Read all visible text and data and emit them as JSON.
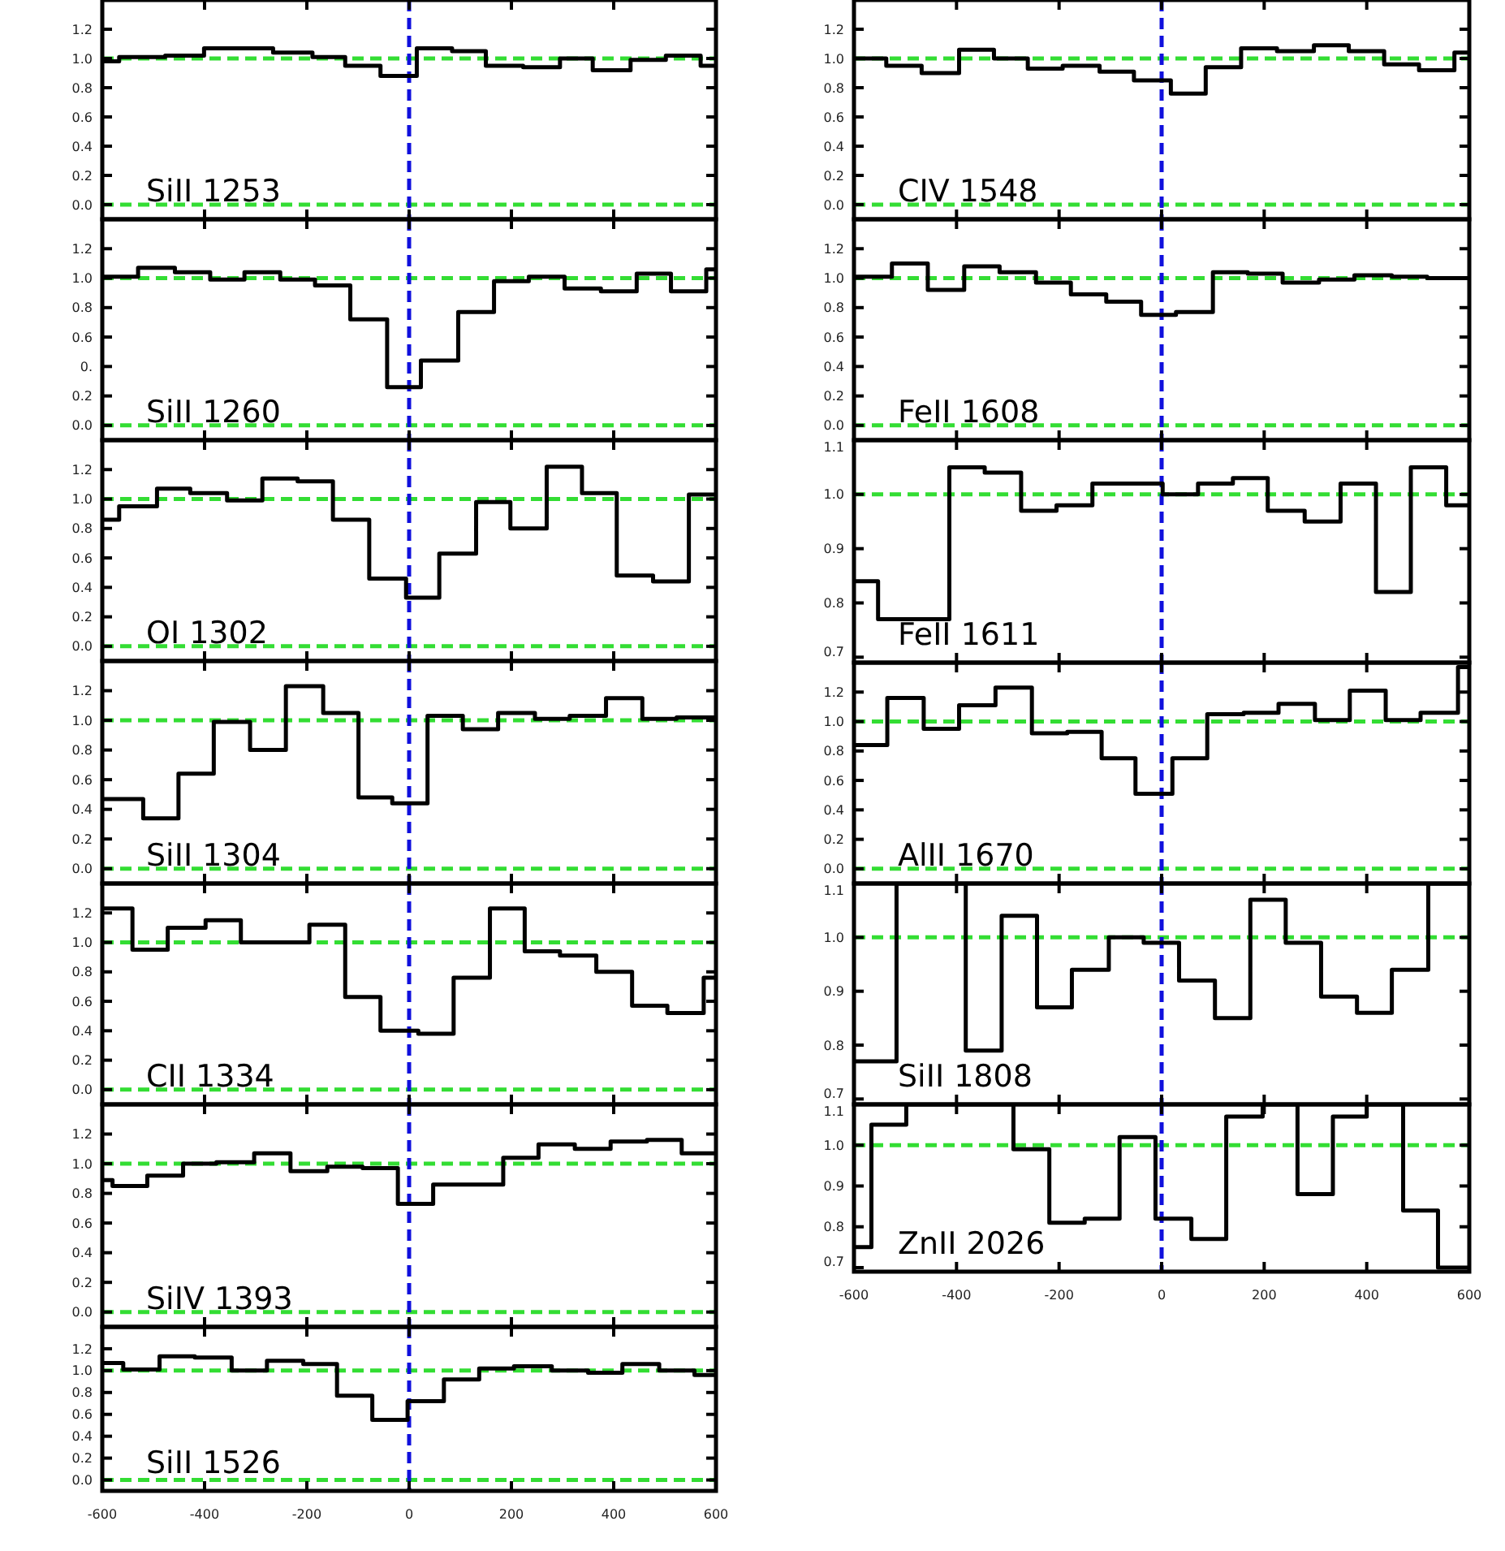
{
  "chart_data": [
    {
      "type": "step",
      "title": "SiII 1253",
      "color": "#000000",
      "x": [
        -600,
        -567,
        -477,
        -401,
        -266,
        -189,
        -125,
        -56,
        15,
        84,
        150,
        223,
        295,
        359,
        433,
        502,
        570,
        600
      ],
      "values": [
        0.98,
        1.01,
        1.02,
        1.07,
        1.04,
        1.01,
        0.95,
        0.88,
        1.07,
        1.05,
        0.95,
        0.94,
        1.0,
        0.92,
        0.99,
        1.02,
        0.95,
        0.95
      ],
      "xlim": [
        -600,
        600
      ],
      "xticks": [
        -600,
        -400,
        -200,
        0,
        200,
        400,
        600
      ],
      "ylim": [
        -0.1,
        1.4
      ],
      "yticks": [
        {
          "value": 0,
          "label": "0.0"
        },
        {
          "value": 0.2,
          "label": "0.2"
        },
        {
          "value": 0.4,
          "label": "0.4"
        },
        {
          "value": 0.6,
          "label": "0.6"
        },
        {
          "value": 0.8,
          "label": "0.8"
        },
        {
          "value": 1,
          "label": "1.0"
        },
        {
          "value": 1.2,
          "label": "1.2"
        }
      ],
      "tick_labels": "y",
      "ref_lines": [
        {
          "axis": "y",
          "value": 0,
          "color": "#33dd33",
          "line_style": "dashed"
        },
        {
          "axis": "y",
          "value": 1,
          "color": "#33dd33",
          "line_style": "dashed"
        },
        {
          "axis": "x",
          "value": 0,
          "color": "#1010dd",
          "line_style": "dashed"
        }
      ]
    },
    {
      "type": "step",
      "title": "SiII 1260",
      "color": "#000000",
      "x": [
        -600,
        -530,
        -458,
        -389,
        -322,
        -252,
        -184,
        -115,
        -43,
        23,
        96,
        166,
        234,
        304,
        375,
        445,
        512,
        581,
        600
      ],
      "values": [
        1.01,
        1.07,
        1.04,
        0.99,
        1.04,
        0.99,
        0.95,
        0.72,
        0.26,
        0.44,
        0.77,
        0.98,
        1.01,
        0.93,
        0.91,
        1.03,
        0.91,
        1.06,
        1.06
      ],
      "xlim": [
        -600,
        600
      ],
      "xticks": [
        -600,
        -400,
        -200,
        0,
        200,
        400,
        600
      ],
      "ylim": [
        -0.1,
        1.4
      ],
      "yticks": [
        {
          "value": 0,
          "label": "0.0"
        },
        {
          "value": 0.2,
          "label": "0.2"
        },
        {
          "value": 0.4,
          "label": "0."
        },
        {
          "value": 0.6,
          "label": "0.6"
        },
        {
          "value": 0.8,
          "label": "0.8"
        },
        {
          "value": 1,
          "label": "1.0"
        },
        {
          "value": 1.2,
          "label": "1.2"
        }
      ],
      "tick_labels": "y",
      "ref_lines": [
        {
          "axis": "y",
          "value": 0,
          "color": "#33dd33",
          "line_style": "dashed"
        },
        {
          "axis": "y",
          "value": 1,
          "color": "#33dd33",
          "line_style": "dashed"
        },
        {
          "axis": "x",
          "value": 0,
          "color": "#1010dd",
          "line_style": "dashed"
        }
      ]
    },
    {
      "type": "step",
      "title": "OI 1302",
      "color": "#000000",
      "x": [
        -600,
        -567,
        -493,
        -428,
        -356,
        -287,
        -218,
        -149,
        -78,
        -6,
        59,
        131,
        198,
        269,
        338,
        406,
        477,
        547,
        600
      ],
      "values": [
        0.86,
        0.95,
        1.07,
        1.04,
        0.99,
        1.14,
        1.12,
        0.86,
        0.46,
        0.33,
        0.63,
        0.98,
        0.8,
        1.22,
        1.04,
        0.48,
        0.44,
        1.03,
        1.03
      ],
      "xlim": [
        -600,
        600
      ],
      "xticks": [
        -600,
        -400,
        -200,
        0,
        200,
        400,
        600
      ],
      "ylim": [
        -0.1,
        1.4
      ],
      "yticks": [
        {
          "value": 0,
          "label": "0.0"
        },
        {
          "value": 0.2,
          "label": "0.2"
        },
        {
          "value": 0.4,
          "label": "0.4"
        },
        {
          "value": 0.6,
          "label": "0.6"
        },
        {
          "value": 0.8,
          "label": "0.8"
        },
        {
          "value": 1,
          "label": "1.0"
        },
        {
          "value": 1.2,
          "label": "1.2"
        }
      ],
      "tick_labels": "y",
      "ref_lines": [
        {
          "axis": "y",
          "value": 0,
          "color": "#33dd33",
          "line_style": "dashed"
        },
        {
          "axis": "y",
          "value": 1,
          "color": "#33dd33",
          "line_style": "dashed"
        },
        {
          "axis": "x",
          "value": 0,
          "color": "#1010dd",
          "line_style": "dashed"
        }
      ]
    },
    {
      "type": "step",
      "title": "SiII 1304",
      "color": "#000000",
      "x": [
        -600,
        -520,
        -451,
        -382,
        -311,
        -241,
        -168,
        -99,
        -33,
        36,
        105,
        174,
        246,
        314,
        385,
        456,
        523,
        600
      ],
      "values": [
        0.47,
        0.34,
        0.64,
        0.99,
        0.8,
        1.23,
        1.05,
        0.48,
        0.44,
        1.03,
        0.94,
        1.05,
        1.01,
        1.03,
        1.15,
        1.01,
        1.02,
        1.02
      ],
      "xlim": [
        -600,
        600
      ],
      "xticks": [
        -600,
        -400,
        -200,
        0,
        200,
        400,
        600
      ],
      "ylim": [
        -0.1,
        1.4
      ],
      "yticks": [
        {
          "value": 0,
          "label": "0.0"
        },
        {
          "value": 0.2,
          "label": "0.2"
        },
        {
          "value": 0.4,
          "label": "0.4"
        },
        {
          "value": 0.6,
          "label": "0.6"
        },
        {
          "value": 0.8,
          "label": "0.8"
        },
        {
          "value": 1,
          "label": "1.0"
        },
        {
          "value": 1.2,
          "label": "1.2"
        }
      ],
      "tick_labels": "y",
      "ref_lines": [
        {
          "axis": "y",
          "value": 0,
          "color": "#33dd33",
          "line_style": "dashed"
        },
        {
          "axis": "y",
          "value": 1,
          "color": "#33dd33",
          "line_style": "dashed"
        },
        {
          "axis": "x",
          "value": 0,
          "color": "#1010dd",
          "line_style": "dashed"
        }
      ]
    },
    {
      "type": "step",
      "title": "CII 1334",
      "color": "#000000",
      "x": [
        -600,
        -541,
        -472,
        -398,
        -329,
        -195,
        -125,
        -56,
        18,
        87,
        158,
        226,
        295,
        366,
        436,
        505,
        576,
        600
      ],
      "values": [
        1.23,
        0.95,
        1.1,
        1.15,
        1.0,
        1.12,
        0.63,
        0.4,
        0.38,
        0.76,
        1.23,
        0.94,
        0.91,
        0.8,
        0.57,
        0.52,
        0.76,
        0.76
      ],
      "xlim": [
        -600,
        600
      ],
      "xticks": [
        -600,
        -400,
        -200,
        0,
        200,
        400,
        600
      ],
      "ylim": [
        -0.1,
        1.4
      ],
      "yticks": [
        {
          "value": 0,
          "label": "0.0"
        },
        {
          "value": 0.2,
          "label": "0.2"
        },
        {
          "value": 0.4,
          "label": "0.4"
        },
        {
          "value": 0.6,
          "label": "0.6"
        },
        {
          "value": 0.8,
          "label": "0.8"
        },
        {
          "value": 1,
          "label": "1.0"
        },
        {
          "value": 1.2,
          "label": "1.2"
        }
      ],
      "tick_labels": "y",
      "ref_lines": [
        {
          "axis": "y",
          "value": 0,
          "color": "#33dd33",
          "line_style": "dashed"
        },
        {
          "axis": "y",
          "value": 1,
          "color": "#33dd33",
          "line_style": "dashed"
        },
        {
          "axis": "x",
          "value": 0,
          "color": "#1010dd",
          "line_style": "dashed"
        }
      ]
    },
    {
      "type": "step",
      "title": "SiIV 1393",
      "color": "#000000",
      "x": [
        -600,
        -580,
        -512,
        -442,
        -377,
        -303,
        -232,
        -160,
        -91,
        -22,
        47,
        184,
        253,
        324,
        394,
        465,
        533,
        600
      ],
      "values": [
        0.89,
        0.85,
        0.92,
        1.0,
        1.01,
        1.07,
        0.95,
        0.98,
        0.97,
        0.73,
        0.86,
        1.04,
        1.13,
        1.1,
        1.15,
        1.16,
        1.07,
        1.07
      ],
      "xlim": [
        -600,
        600
      ],
      "xticks": [
        -600,
        -400,
        -200,
        0,
        200,
        400,
        600
      ],
      "ylim": [
        -0.1,
        1.4
      ],
      "yticks": [
        {
          "value": 0,
          "label": "0.0"
        },
        {
          "value": 0.2,
          "label": "0.2"
        },
        {
          "value": 0.4,
          "label": "0.4"
        },
        {
          "value": 0.6,
          "label": "0.6"
        },
        {
          "value": 0.8,
          "label": "0.8"
        },
        {
          "value": 1,
          "label": "1.0"
        },
        {
          "value": 1.2,
          "label": "1.2"
        }
      ],
      "tick_labels": "y",
      "ref_lines": [
        {
          "axis": "y",
          "value": 0,
          "color": "#33dd33",
          "line_style": "dashed"
        },
        {
          "axis": "y",
          "value": 1,
          "color": "#33dd33",
          "line_style": "dashed"
        },
        {
          "axis": "x",
          "value": 0,
          "color": "#1010dd",
          "line_style": "dashed"
        }
      ]
    },
    {
      "type": "step",
      "title": "SiII 1526",
      "color": "#000000",
      "x": [
        -600,
        -559,
        -488,
        -419,
        -347,
        -278,
        -207,
        -141,
        -72,
        -3,
        68,
        137,
        205,
        279,
        350,
        417,
        489,
        558,
        600
      ],
      "values": [
        1.07,
        1.01,
        1.13,
        1.12,
        1.0,
        1.09,
        1.06,
        0.77,
        0.55,
        0.72,
        0.92,
        1.02,
        1.04,
        1.0,
        0.98,
        1.06,
        1.0,
        0.96,
        0.96
      ],
      "xlim": [
        -600,
        600
      ],
      "xticks": [
        -600,
        -400,
        -200,
        0,
        200,
        400,
        600
      ],
      "ylim": [
        -0.1,
        1.4
      ],
      "yticks": [
        {
          "value": 0,
          "label": "0.0"
        },
        {
          "value": 0.2,
          "label": "0.2"
        },
        {
          "value": 0.4,
          "label": "0.4"
        },
        {
          "value": 0.6,
          "label": "0.6"
        },
        {
          "value": 0.8,
          "label": "0.8"
        },
        {
          "value": 1,
          "label": "1.0"
        },
        {
          "value": 1.2,
          "label": "1.2"
        }
      ],
      "ref_lines": [
        {
          "axis": "y",
          "value": 0,
          "color": "#33dd33",
          "line_style": "dashed"
        },
        {
          "axis": "y",
          "value": 1,
          "color": "#33dd33",
          "line_style": "dashed"
        },
        {
          "axis": "x",
          "value": 0,
          "color": "#1010dd",
          "line_style": "dashed"
        }
      ]
    },
    {
      "type": "step",
      "title": "CIV 1548",
      "color": "#000000",
      "x": [
        -600,
        -537,
        -468,
        -395,
        -327,
        -261,
        -193,
        -121,
        -54,
        18,
        86,
        155,
        225,
        297,
        365,
        434,
        502,
        571,
        600
      ],
      "values": [
        1.0,
        0.95,
        0.9,
        1.06,
        1.0,
        0.93,
        0.95,
        0.91,
        0.85,
        0.76,
        0.94,
        1.07,
        1.05,
        1.09,
        1.05,
        0.96,
        0.92,
        1.04,
        1.04
      ],
      "xlim": [
        -600,
        600
      ],
      "xticks": [
        -600,
        -400,
        -200,
        0,
        200,
        400,
        600
      ],
      "ylim": [
        -0.1,
        1.4
      ],
      "yticks": [
        {
          "value": 0,
          "label": "0.0"
        },
        {
          "value": 0.2,
          "label": "0.2"
        },
        {
          "value": 0.4,
          "label": "0.4"
        },
        {
          "value": 0.6,
          "label": "0.6"
        },
        {
          "value": 0.8,
          "label": "0.8"
        },
        {
          "value": 1,
          "label": "1.0"
        },
        {
          "value": 1.2,
          "label": "1.2"
        }
      ],
      "tick_labels": "y",
      "ref_lines": [
        {
          "axis": "y",
          "value": 0,
          "color": "#33dd33",
          "line_style": "dashed"
        },
        {
          "axis": "y",
          "value": 1,
          "color": "#33dd33",
          "line_style": "dashed"
        },
        {
          "axis": "x",
          "value": 0,
          "color": "#1010dd",
          "line_style": "dashed"
        }
      ]
    },
    {
      "type": "step",
      "title": "FeII 1608",
      "color": "#000000",
      "x": [
        -600,
        -526,
        -456,
        -385,
        -316,
        -245,
        -177,
        -108,
        -40,
        28,
        100,
        168,
        236,
        307,
        376,
        449,
        518,
        600
      ],
      "values": [
        1.01,
        1.1,
        0.92,
        1.08,
        1.04,
        0.97,
        0.89,
        0.84,
        0.75,
        0.77,
        1.04,
        1.03,
        0.97,
        0.99,
        1.02,
        1.01,
        1.0,
        1.0
      ],
      "xlim": [
        -600,
        600
      ],
      "xticks": [
        -600,
        -400,
        -200,
        0,
        200,
        400,
        600
      ],
      "ylim": [
        -0.1,
        1.4
      ],
      "yticks": [
        {
          "value": 0,
          "label": "0.0"
        },
        {
          "value": 0.2,
          "label": "0.2"
        },
        {
          "value": 0.4,
          "label": "0.4"
        },
        {
          "value": 0.6,
          "label": "0.6"
        },
        {
          "value": 0.8,
          "label": "0.8"
        },
        {
          "value": 1,
          "label": "1.0"
        },
        {
          "value": 1.2,
          "label": "1.2"
        }
      ],
      "tick_labels": "y",
      "ref_lines": [
        {
          "axis": "y",
          "value": 0,
          "color": "#33dd33",
          "line_style": "dashed"
        },
        {
          "axis": "y",
          "value": 1,
          "color": "#33dd33",
          "line_style": "dashed"
        },
        {
          "axis": "x",
          "value": 0,
          "color": "#1010dd",
          "line_style": "dashed"
        }
      ]
    },
    {
      "type": "step",
      "title": "FeII 1611",
      "color": "#000000",
      "x": [
        -600,
        -553,
        -414,
        -345,
        -274,
        -205,
        -135,
        2,
        71,
        139,
        207,
        279,
        349,
        418,
        486,
        555,
        600
      ],
      "values": [
        0.84,
        0.77,
        1.05,
        1.04,
        0.97,
        0.98,
        1.02,
        1.0,
        1.02,
        1.03,
        0.97,
        0.95,
        1.02,
        0.82,
        1.05,
        0.98,
        0.98
      ],
      "xlim": [
        -600,
        600
      ],
      "xticks": [
        -600,
        -400,
        -200,
        0,
        200,
        400,
        600
      ],
      "ylim": [
        0.69,
        1.1
      ],
      "yticks": [
        {
          "value": 0.7,
          "label": "0.7"
        },
        {
          "value": 0.8,
          "label": "0.8"
        },
        {
          "value": 0.9,
          "label": "0.9"
        },
        {
          "value": 1,
          "label": "1.0"
        },
        {
          "value": 1.1,
          "label": "1.1"
        }
      ],
      "tick_labels": "y",
      "ref_lines": [
        {
          "axis": "y",
          "value": 1,
          "color": "#33dd33",
          "line_style": "dashed"
        },
        {
          "axis": "x",
          "value": 0,
          "color": "#1010dd",
          "line_style": "dashed"
        }
      ]
    },
    {
      "type": "step",
      "title": "AlII 1670",
      "color": "#000000",
      "x": [
        -600,
        -535,
        -464,
        -395,
        -324,
        -253,
        -184,
        -117,
        -51,
        21,
        89,
        160,
        228,
        299,
        367,
        437,
        505,
        578,
        600
      ],
      "values": [
        0.84,
        1.16,
        0.95,
        1.11,
        1.23,
        0.92,
        0.93,
        0.75,
        0.51,
        0.75,
        1.05,
        1.06,
        1.12,
        1.01,
        1.21,
        1.01,
        1.06,
        1.37,
        1.37
      ],
      "xlim": [
        -600,
        600
      ],
      "xticks": [
        -600,
        -400,
        -200,
        0,
        200,
        400,
        600
      ],
      "ylim": [
        -0.1,
        1.4
      ],
      "yticks": [
        {
          "value": 0,
          "label": "0.0"
        },
        {
          "value": 0.2,
          "label": "0.2"
        },
        {
          "value": 0.4,
          "label": "0.4"
        },
        {
          "value": 0.6,
          "label": "0.6"
        },
        {
          "value": 0.8,
          "label": "0.8"
        },
        {
          "value": 1,
          "label": "1.0"
        },
        {
          "value": 1.2,
          "label": "1.2"
        }
      ],
      "tick_labels": "y",
      "ref_lines": [
        {
          "axis": "y",
          "value": 0,
          "color": "#33dd33",
          "line_style": "dashed"
        },
        {
          "axis": "y",
          "value": 1,
          "color": "#33dd33",
          "line_style": "dashed"
        },
        {
          "axis": "x",
          "value": 0,
          "color": "#1010dd",
          "line_style": "dashed"
        }
      ]
    },
    {
      "type": "step",
      "title": "SiII 1808",
      "color": "#000000",
      "x": [
        -600,
        -517,
        -382,
        -312,
        -243,
        -175,
        -103,
        -35,
        34,
        104,
        173,
        242,
        311,
        381,
        449,
        520,
        600
      ],
      "values": [
        0.77,
        1.1,
        0.79,
        1.04,
        0.87,
        0.94,
        1.0,
        0.99,
        0.92,
        0.85,
        1.07,
        0.99,
        0.89,
        0.86,
        0.94,
        1.1,
        1.1
      ],
      "xlim": [
        -600,
        600
      ],
      "xticks": [
        -600,
        -400,
        -200,
        0,
        200,
        400,
        600
      ],
      "ylim": [
        0.69,
        1.1
      ],
      "yticks": [
        {
          "value": 0.7,
          "label": "0.7"
        },
        {
          "value": 0.8,
          "label": "0.8"
        },
        {
          "value": 0.9,
          "label": "0.9"
        },
        {
          "value": 1,
          "label": "1.0"
        },
        {
          "value": 1.1,
          "label": "1.1"
        }
      ],
      "tick_labels": "y",
      "ref_lines": [
        {
          "axis": "y",
          "value": 1,
          "color": "#33dd33",
          "line_style": "dashed"
        },
        {
          "axis": "x",
          "value": 0,
          "color": "#1010dd",
          "line_style": "dashed"
        }
      ]
    },
    {
      "type": "step",
      "title": "ZnII 2026",
      "color": "#000000",
      "x": [
        -600,
        -566,
        -498,
        -289,
        -219,
        -150,
        -82,
        -12,
        58,
        126,
        197,
        265,
        334,
        400,
        471,
        539,
        600
      ],
      "values": [
        0.75,
        1.05,
        1.1,
        0.99,
        0.81,
        0.82,
        1.02,
        0.82,
        0.77,
        1.07,
        1.1,
        0.88,
        1.07,
        1.1,
        0.84,
        0.7,
        0.7
      ],
      "xlim": [
        -600,
        600
      ],
      "xticks": [
        -600,
        -400,
        -200,
        0,
        200,
        400,
        600
      ],
      "ylim": [
        0.69,
        1.1
      ],
      "yticks": [
        {
          "value": 0.7,
          "label": "0.7"
        },
        {
          "value": 0.8,
          "label": "0.8"
        },
        {
          "value": 0.9,
          "label": "0.9"
        },
        {
          "value": 1,
          "label": "1.0"
        },
        {
          "value": 1.1,
          "label": "1.1"
        }
      ],
      "ref_lines": [
        {
          "axis": "y",
          "value": 1,
          "color": "#33dd33",
          "line_style": "dashed"
        },
        {
          "axis": "x",
          "value": 0,
          "color": "#1010dd",
          "line_style": "dashed"
        }
      ]
    }
  ]
}
